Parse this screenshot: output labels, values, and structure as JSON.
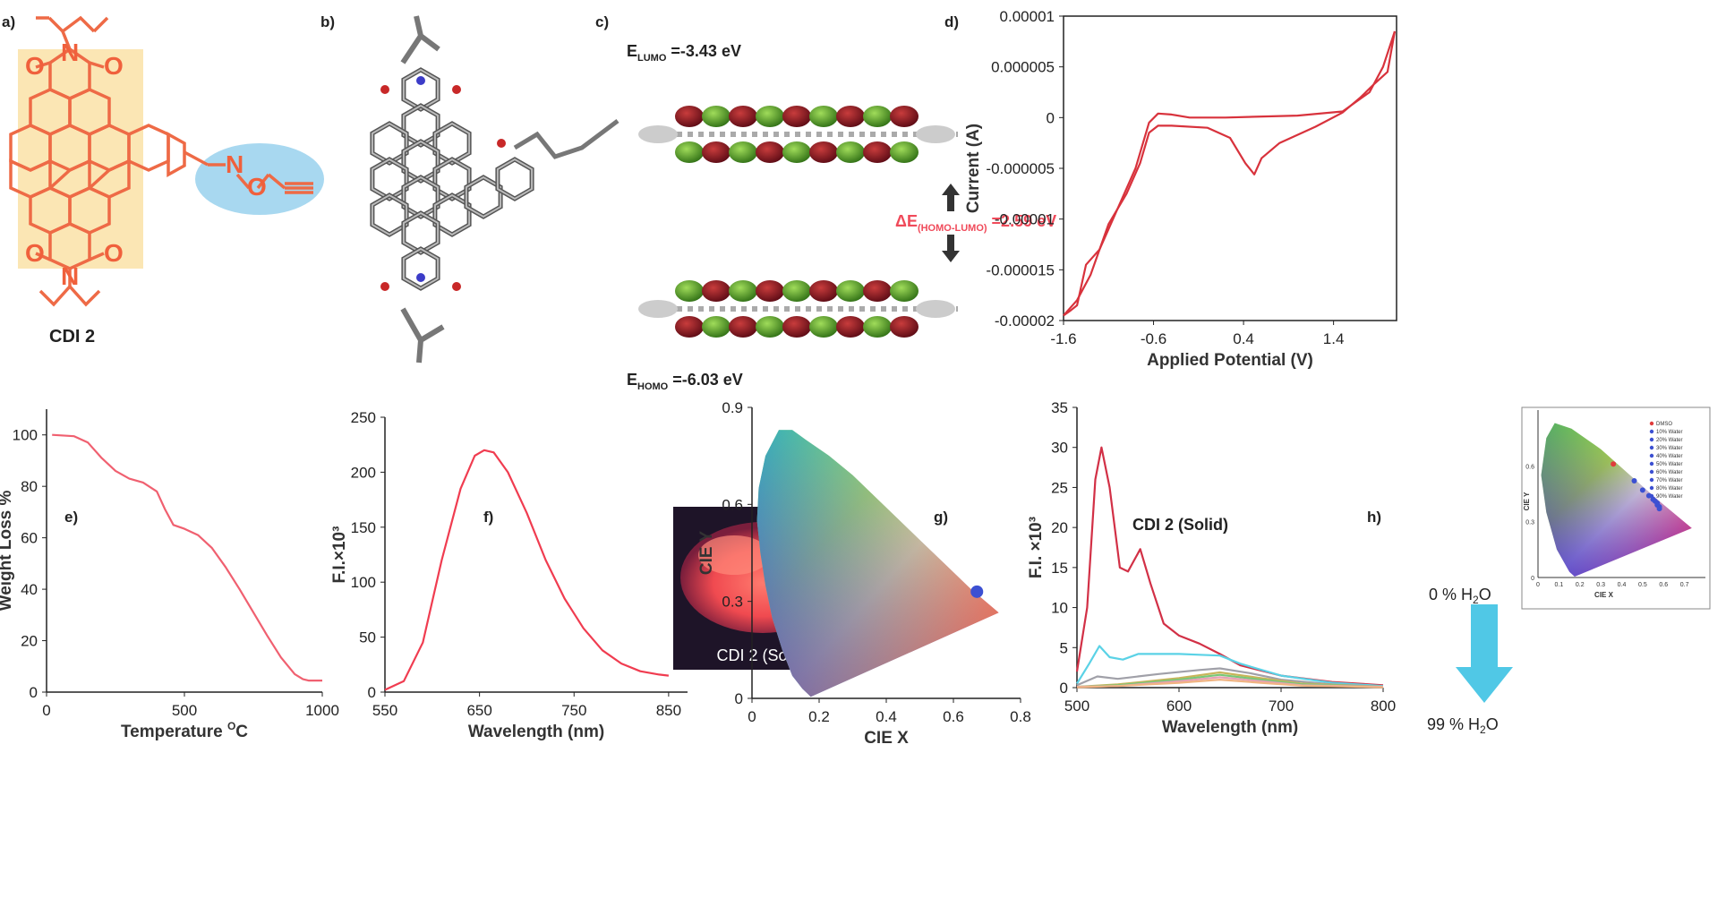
{
  "panels": {
    "a": {
      "label": "a)",
      "compound": "CDI 2",
      "atoms": {
        "o": "O",
        "n": "N",
        "n_oxime": "N",
        "o_oxime": "O"
      }
    },
    "b": {
      "label": "b)"
    },
    "c": {
      "label": "c)",
      "lumo_prefix": "E",
      "lumo_sub": "LUMO",
      "lumo_value": " =-3.43 eV",
      "gap_prefix": "ΔE",
      "gap_sub": "(HOMO-LUMO)",
      "gap_value": " =2.59 eV",
      "homo_prefix": "E",
      "homo_sub": "HOMO",
      "homo_value": " =-6.03 eV"
    },
    "d": {
      "label": "d)"
    },
    "e": {
      "label": "e)"
    },
    "f": {
      "label": "f)",
      "inset_caption": "CDI 2 (Solid)"
    },
    "g": {
      "label": "g)",
      "title": "CDI 2 (Solid)"
    },
    "h": {
      "label": "h)",
      "arrow_top": "0 % H",
      "arrow_top_sub": "2",
      "arrow_top_end": "O",
      "arrow_bottom": "99 % H",
      "arrow_bottom_sub": "2",
      "arrow_bottom_end": "O",
      "inset_legend": [
        "DMSO",
        "10% Water",
        "20% Water",
        "30% Water",
        "40% Water",
        "50% Water",
        "60% Water",
        "70% Water",
        "80% Water",
        "90% Water"
      ],
      "inset_x_ticks": [
        "0",
        "0.1",
        "0.2",
        "0.3",
        "0.4",
        "0.5",
        "0.6",
        "0.7"
      ],
      "inset_y_ticks": [
        "0",
        "0.3",
        "0.6"
      ],
      "inset_xlabel": "CIE X",
      "inset_ylabel": "CIE Y"
    }
  },
  "chart_data": [
    {
      "id": "d",
      "type": "line",
      "xlabel": "Applied Potential (V)",
      "ylabel": "Current (A)",
      "xlim": [
        -1.6,
        2.1
      ],
      "ylim": [
        -2e-05,
        1e-05
      ],
      "x_ticks": [
        "-1.6",
        "-0.6",
        "0.4",
        "1.4"
      ],
      "y_ticks": [
        "0.00001",
        "0.000005",
        "0",
        "-0.000005",
        "-0.00001",
        "-0.000015",
        "-0.00002"
      ],
      "color": "#d8323c",
      "series": [
        {
          "x": [
            -1.6,
            -1.45,
            -1.3,
            -1.1,
            -0.9,
            -0.75,
            -0.65,
            -0.55,
            -0.4,
            0.0,
            0.25,
            0.42,
            0.52,
            0.6,
            0.8,
            1.2,
            1.5,
            1.7,
            1.85,
            2.0,
            2.08
          ],
          "y": [
            -1.95e-05,
            -1.8e-05,
            -1.55e-05,
            -1.05e-05,
            -7.5e-06,
            -4.5e-06,
            -1.5e-06,
            -8e-07,
            -8e-07,
            -1e-06,
            -2e-06,
            -4.5e-06,
            -5.6e-06,
            -4e-06,
            -2.5e-06,
            -9e-07,
            5e-07,
            2e-06,
            3.3e-06,
            4.5e-06,
            8.5e-06
          ]
        },
        {
          "x": [
            2.08,
            1.95,
            1.8,
            1.5,
            1.0,
            0.2,
            -0.2,
            -0.4,
            -0.55,
            -0.65,
            -0.8,
            -1.0,
            -1.2,
            -1.35,
            -1.45,
            -1.52,
            -1.6
          ],
          "y": [
            8.5e-06,
            5e-06,
            2.5e-06,
            6e-07,
            2e-07,
            0,
            0,
            3e-07,
            4e-07,
            -5e-07,
            -5e-06,
            -9e-06,
            -1.3e-05,
            -1.45e-05,
            -1.85e-05,
            -1.9e-05,
            -1.95e-05
          ]
        }
      ]
    },
    {
      "id": "e",
      "type": "line",
      "xlabel": "Temperature ",
      "xlabel_sup": "O",
      "xlabel_end": "C",
      "ylabel": "Weight Loss %",
      "xlim": [
        0,
        1000
      ],
      "ylim": [
        0,
        110
      ],
      "x_ticks": [
        "0",
        "500",
        "1000"
      ],
      "y_ticks": [
        "0",
        "20",
        "40",
        "60",
        "80",
        "100"
      ],
      "color": "#f06070",
      "series": [
        {
          "x": [
            20,
            100,
            150,
            200,
            250,
            300,
            350,
            400,
            430,
            460,
            500,
            550,
            600,
            650,
            700,
            750,
            800,
            850,
            900,
            930,
            950,
            1000
          ],
          "y": [
            100,
            99.5,
            97,
            91,
            86,
            83,
            81.5,
            78,
            71,
            65,
            63.5,
            61,
            56,
            48.5,
            40,
            31,
            22,
            13.5,
            7,
            5,
            4.5,
            4.5
          ]
        }
      ]
    },
    {
      "id": "f",
      "type": "line",
      "xlabel": "Wavelength (nm)",
      "ylabel": "F.I.×10³",
      "xlim": [
        550,
        870
      ],
      "ylim": [
        0,
        250
      ],
      "x_ticks": [
        "550",
        "650",
        "750",
        "850"
      ],
      "y_ticks": [
        "0",
        "50",
        "100",
        "150",
        "200",
        "250"
      ],
      "color": "#f03c50",
      "series": [
        {
          "x": [
            550,
            570,
            590,
            610,
            630,
            645,
            655,
            665,
            680,
            700,
            720,
            740,
            760,
            780,
            800,
            820,
            840,
            850
          ],
          "y": [
            2,
            10,
            45,
            120,
            185,
            215,
            220,
            218,
            200,
            163,
            120,
            85,
            58,
            38,
            26,
            19,
            16,
            15
          ]
        }
      ]
    },
    {
      "id": "g",
      "type": "scatter",
      "xlabel": "CIE X",
      "ylabel": "CIE Y",
      "xlim": [
        0,
        0.8
      ],
      "ylim": [
        0,
        0.9
      ],
      "x_ticks": [
        "0",
        "0.2",
        "0.4",
        "0.6",
        "0.8"
      ],
      "y_ticks": [
        "0",
        "0.3",
        "0.6",
        "0.9"
      ],
      "series": [
        {
          "x": [
            0.67
          ],
          "y": [
            0.33
          ],
          "color": "#3c50d2"
        }
      ]
    },
    {
      "id": "h",
      "type": "line",
      "xlabel": "Wavelength (nm)",
      "ylabel": "F.I. ×10³",
      "xlim": [
        500,
        800
      ],
      "ylim": [
        0,
        35
      ],
      "x_ticks": [
        "500",
        "600",
        "700",
        "800"
      ],
      "y_ticks": [
        "0",
        "5",
        "10",
        "15",
        "20",
        "25",
        "30",
        "35"
      ],
      "series": [
        {
          "color": "#d23046",
          "x": [
            500,
            510,
            518,
            524,
            532,
            542,
            550,
            562,
            572,
            585,
            600,
            620,
            640,
            660,
            700,
            750,
            800
          ],
          "y": [
            2,
            10,
            26,
            30,
            25,
            15,
            14.5,
            17.3,
            13,
            8,
            6.5,
            5.5,
            4.2,
            2.8,
            1.5,
            0.7,
            0.3
          ]
        },
        {
          "color": "#5ad2e6",
          "x": [
            500,
            512,
            522,
            532,
            545,
            560,
            580,
            600,
            620,
            640,
            660,
            700,
            750,
            800
          ],
          "y": [
            0.5,
            3,
            5.2,
            3.8,
            3.5,
            4.2,
            4.2,
            4.2,
            4.1,
            4.0,
            3.0,
            1.5,
            0.6,
            0.2
          ]
        },
        {
          "color": "#a0a0a8",
          "x": [
            500,
            520,
            540,
            580,
            620,
            640,
            670,
            700,
            750,
            800
          ],
          "y": [
            0.3,
            1.4,
            1.1,
            1.7,
            2.2,
            2.4,
            1.8,
            1.0,
            0.4,
            0.1
          ]
        },
        {
          "color": "#c8b45a",
          "x": [
            500,
            540,
            600,
            640,
            680,
            720,
            800
          ],
          "y": [
            0.1,
            0.4,
            1.2,
            1.9,
            1.2,
            0.5,
            0.1
          ]
        },
        {
          "color": "#78c878",
          "x": [
            500,
            540,
            600,
            640,
            680,
            720,
            800
          ],
          "y": [
            0.1,
            0.3,
            1.0,
            1.6,
            1.0,
            0.4,
            0.1
          ]
        },
        {
          "color": "#e6a0b4",
          "x": [
            500,
            540,
            600,
            640,
            680,
            720,
            800
          ],
          "y": [
            0.1,
            0.2,
            0.8,
            1.3,
            0.8,
            0.3,
            0.1
          ]
        },
        {
          "color": "#f0b482",
          "x": [
            500,
            540,
            600,
            640,
            680,
            720,
            800
          ],
          "y": [
            0.05,
            0.2,
            0.6,
            1.0,
            0.6,
            0.25,
            0.05
          ]
        }
      ]
    }
  ],
  "inset_h_points": {
    "x": [
      0.36,
      0.46,
      0.5,
      0.53,
      0.55,
      0.56,
      0.57,
      0.57,
      0.58,
      0.58
    ],
    "y": [
      0.61,
      0.52,
      0.47,
      0.44,
      0.42,
      0.41,
      0.4,
      0.39,
      0.38,
      0.37
    ],
    "colors": [
      "#e03c3c",
      "#3c50d2",
      "#3c50d2",
      "#3c50d2",
      "#3c50d2",
      "#3c50d2",
      "#3c50d2",
      "#3c50d2",
      "#3c50d2",
      "#3c50d2"
    ]
  }
}
